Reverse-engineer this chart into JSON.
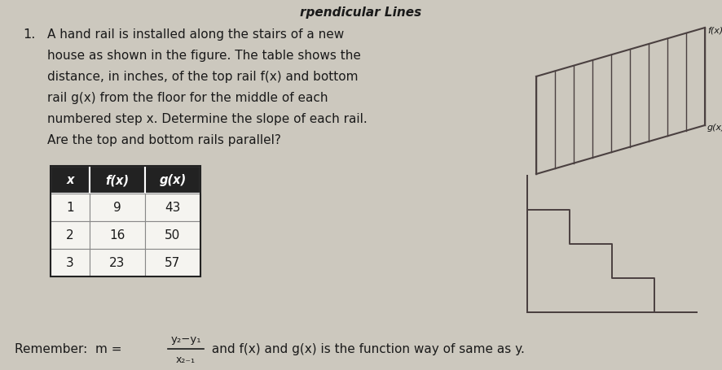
{
  "background_color": "#ccc8be",
  "title_partial": "rpendicular Lines",
  "problem_number": "1.",
  "problem_text_lines": [
    "A hand rail is installed along the stairs of a new",
    "house as shown in the figure. The table shows the",
    "distance, in inches, of the top rail f(x) and bottom",
    "rail g(x) from the floor for the middle of each",
    "numbered step x. Determine the slope of each rail.",
    "Are the top and bottom rails parallel?"
  ],
  "table_headers": [
    "x",
    "f(x)",
    "g(x)"
  ],
  "table_data": [
    [
      1,
      9,
      43
    ],
    [
      2,
      16,
      50
    ],
    [
      3,
      23,
      57
    ]
  ],
  "remember_label": "Remember:  m =",
  "formula_numerator": "y₂−y₁",
  "formula_denominator": "x₂₋₁",
  "remember_suffix": " and f(x) and g(x) is the function way of same as y.",
  "header_bg": "#222222",
  "header_fg": "#ffffff",
  "cell_bg": "#f5f4f0",
  "cell_border": "#888888",
  "text_color": "#1a1a1a",
  "stair_color": "#4a4040",
  "label_fx": "f(x)",
  "label_gx": "g(x)"
}
